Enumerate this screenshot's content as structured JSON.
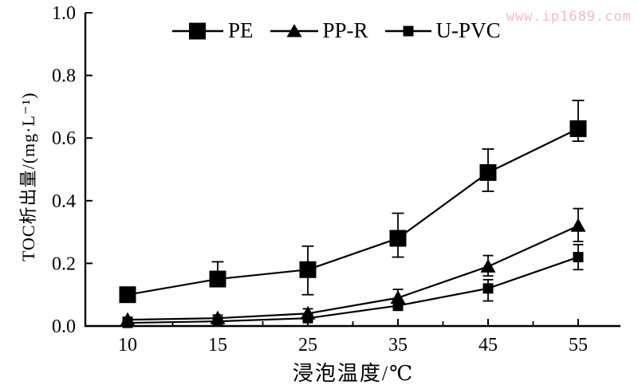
{
  "watermark": {
    "text": "www.ip1689.com",
    "color": "#f3bbc7"
  },
  "legend": {
    "items": [
      {
        "label": "PE",
        "marker": "square-large"
      },
      {
        "label": "PP-R",
        "marker": "triangle"
      },
      {
        "label": "U-PVC",
        "marker": "square-small"
      }
    ]
  },
  "chart_data": {
    "type": "line",
    "title": "",
    "xlabel": "浸泡温度/℃",
    "ylabel": "TOC析出量/(mg·L⁻¹)",
    "categories": [
      10,
      15,
      25,
      35,
      45,
      55
    ],
    "x_tick_labels": [
      "10",
      "15",
      "25",
      "35",
      "45",
      "55"
    ],
    "y_ticks": [
      0.0,
      0.2,
      0.4,
      0.6,
      0.8,
      1.0
    ],
    "y_tick_labels": [
      "0.0",
      "0.2",
      "0.4",
      "0.6",
      "0.8",
      "1.0"
    ],
    "ylim": [
      0,
      1.0
    ],
    "grid": false,
    "legend_position": "top",
    "line_color": "#000000",
    "background_color": "#ffffff",
    "series": [
      {
        "name": "PE",
        "marker": "square-large",
        "values": [
          0.1,
          0.15,
          0.18,
          0.28,
          0.49,
          0.63
        ],
        "err_up": [
          0.015,
          0.055,
          0.075,
          0.08,
          0.075,
          0.09
        ],
        "err_down": [
          0.015,
          0.02,
          0.08,
          0.06,
          0.06,
          0.04
        ]
      },
      {
        "name": "PP-R",
        "marker": "triangle",
        "values": [
          0.02,
          0.025,
          0.04,
          0.09,
          0.19,
          0.32
        ],
        "err_up": [
          0.008,
          0.01,
          0.015,
          0.027,
          0.035,
          0.055
        ],
        "err_down": [
          0.008,
          0.01,
          0.015,
          0.02,
          0.03,
          0.05
        ]
      },
      {
        "name": "U-PVC",
        "marker": "square-small",
        "values": [
          0.01,
          0.015,
          0.025,
          0.065,
          0.12,
          0.22
        ],
        "err_up": [
          0.005,
          0.008,
          0.01,
          0.015,
          0.028,
          0.04
        ],
        "err_down": [
          0.005,
          0.008,
          0.01,
          0.015,
          0.04,
          0.04
        ]
      }
    ]
  }
}
